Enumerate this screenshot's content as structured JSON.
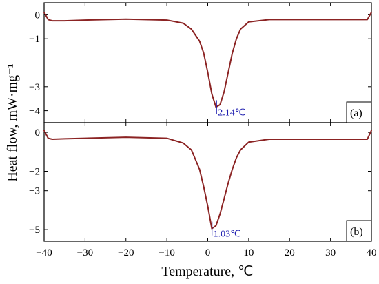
{
  "chart_data": [
    {
      "type": "line",
      "panel_label": "(a)",
      "xlim": [
        -40,
        40
      ],
      "ylim": [
        -4.5,
        0.5
      ],
      "yticks": [
        0,
        -1,
        -3,
        -4
      ],
      "series": [
        {
          "color": "#8b2323",
          "x": [
            -40,
            -39,
            -38,
            -35,
            -30,
            -20,
            -10,
            -6,
            -4,
            -2,
            -1,
            0,
            1,
            2,
            3,
            4,
            5,
            6,
            7,
            8,
            10,
            15,
            20,
            30,
            39,
            40
          ],
          "y": [
            0.1,
            -0.2,
            -0.25,
            -0.25,
            -0.22,
            -0.18,
            -0.22,
            -0.35,
            -0.6,
            -1.1,
            -1.6,
            -2.4,
            -3.3,
            -3.85,
            -3.75,
            -3.2,
            -2.4,
            -1.6,
            -1.0,
            -0.6,
            -0.3,
            -0.2,
            -0.2,
            -0.2,
            -0.2,
            0.1
          ]
        }
      ],
      "peak": {
        "x": 2.14,
        "y": -3.85,
        "label": "2.14℃"
      }
    },
    {
      "type": "line",
      "panel_label": "(b)",
      "xlim": [
        -40,
        40
      ],
      "ylim": [
        -5.6,
        0.5
      ],
      "yticks": [
        0,
        -2,
        -3,
        -5
      ],
      "series": [
        {
          "color": "#8b2323",
          "x": [
            -40,
            -39,
            -38,
            -35,
            -30,
            -20,
            -10,
            -6,
            -4,
            -2,
            -1,
            0,
            1,
            2,
            3,
            4,
            5,
            6,
            7,
            8,
            10,
            15,
            20,
            30,
            39,
            40
          ],
          "y": [
            0.1,
            -0.3,
            -0.35,
            -0.33,
            -0.3,
            -0.25,
            -0.3,
            -0.55,
            -0.9,
            -1.9,
            -2.8,
            -3.8,
            -4.95,
            -4.8,
            -4.2,
            -3.4,
            -2.6,
            -1.9,
            -1.3,
            -0.9,
            -0.5,
            -0.35,
            -0.35,
            -0.35,
            -0.35,
            0.1
          ]
        }
      ],
      "peak": {
        "x": 1.03,
        "y": -4.95,
        "label": "1.03℃"
      }
    }
  ],
  "axes": {
    "xticks": [
      -40,
      -30,
      -20,
      -10,
      0,
      10,
      20,
      30,
      40
    ],
    "xlabel": "Temperature, ℃",
    "ylabel": "Heat flow, mW·mg⁻¹"
  },
  "colors": {
    "curve": "#8b2323",
    "peak_label": "#1f1fb0",
    "frame": "#000000"
  }
}
